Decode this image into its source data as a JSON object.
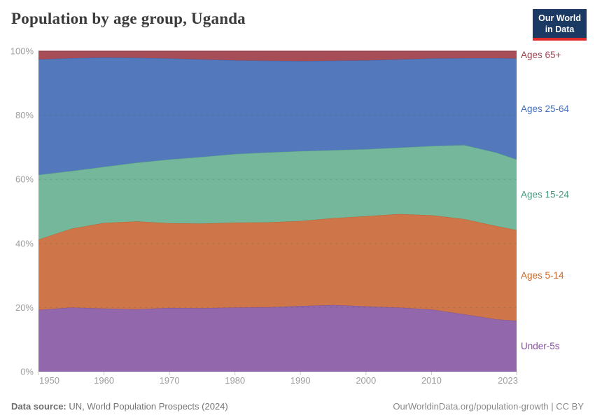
{
  "header": {
    "title": "Population by age group, Uganda",
    "logo": {
      "line1": "Our World",
      "line2": "in Data",
      "bg_color": "#1a3a63",
      "accent_color": "#e12b2b"
    }
  },
  "footer": {
    "source_label": "Data source:",
    "source_text": " UN, World Population Prospects (2024)",
    "link_text": "OurWorldinData.org/population-growth | CC BY"
  },
  "chart_data": {
    "type": "area",
    "stacked": true,
    "title": "Population by age group, Uganda",
    "unit": "%",
    "xlabel": "",
    "ylabel": "",
    "xlim": [
      1950,
      2023
    ],
    "ylim": [
      0,
      100
    ],
    "grid": true,
    "legend_position": "right-edge-labels",
    "xticks": [
      1950,
      1960,
      1970,
      1980,
      1990,
      2000,
      2010,
      2023
    ],
    "yticks": [
      0,
      20,
      40,
      60,
      80,
      100
    ],
    "x": [
      1950,
      1955,
      1960,
      1965,
      1970,
      1975,
      1980,
      1985,
      1990,
      1995,
      2000,
      2005,
      2010,
      2015,
      2020,
      2023
    ],
    "series": [
      {
        "id": "under-5s",
        "name": "Under-5s",
        "color": "#9267ab",
        "line_color": "#7c5399",
        "label_color": "#8850a1",
        "values": [
          19.3,
          20.0,
          19.7,
          19.5,
          19.9,
          19.8,
          20.0,
          20.1,
          20.5,
          20.8,
          20.4,
          20.0,
          19.4,
          17.9,
          16.3,
          15.9
        ]
      },
      {
        "id": "ages-5-14",
        "name": "Ages 5-14",
        "color": "#ce764a",
        "line_color": "#c05f2e",
        "label_color": "#cb6829",
        "values": [
          21.9,
          24.6,
          26.7,
          27.4,
          26.4,
          26.4,
          26.5,
          26.5,
          26.5,
          27.1,
          28.1,
          29.2,
          29.4,
          29.7,
          29.1,
          28.3
        ]
      },
      {
        "id": "ages-15-24",
        "name": "Ages 15-24",
        "color": "#74b79a",
        "line_color": "#57a380",
        "label_color": "#46997c",
        "values": [
          20.2,
          18.0,
          17.5,
          18.3,
          19.9,
          20.8,
          21.4,
          21.8,
          21.8,
          21.2,
          20.9,
          20.7,
          21.6,
          23.1,
          22.9,
          22.0
        ]
      },
      {
        "id": "ages-25-64",
        "name": "Ages 25-64",
        "color": "#5478bc",
        "line_color": "#3e63a8",
        "label_color": "#4470c4",
        "values": [
          36.0,
          35.2,
          34.1,
          32.7,
          31.5,
          30.4,
          29.2,
          28.6,
          28.1,
          27.9,
          27.7,
          27.5,
          27.3,
          27.1,
          29.5,
          31.5
        ]
      },
      {
        "id": "ages-65-plus",
        "name": "Ages 65+",
        "color": "#a64d57",
        "line_color": "#8f3a46",
        "label_color": "#a04352",
        "values": [
          2.6,
          2.2,
          2.0,
          2.1,
          2.3,
          2.6,
          2.9,
          3.0,
          3.1,
          3.0,
          2.9,
          2.6,
          2.3,
          2.2,
          2.2,
          2.3
        ]
      }
    ]
  }
}
